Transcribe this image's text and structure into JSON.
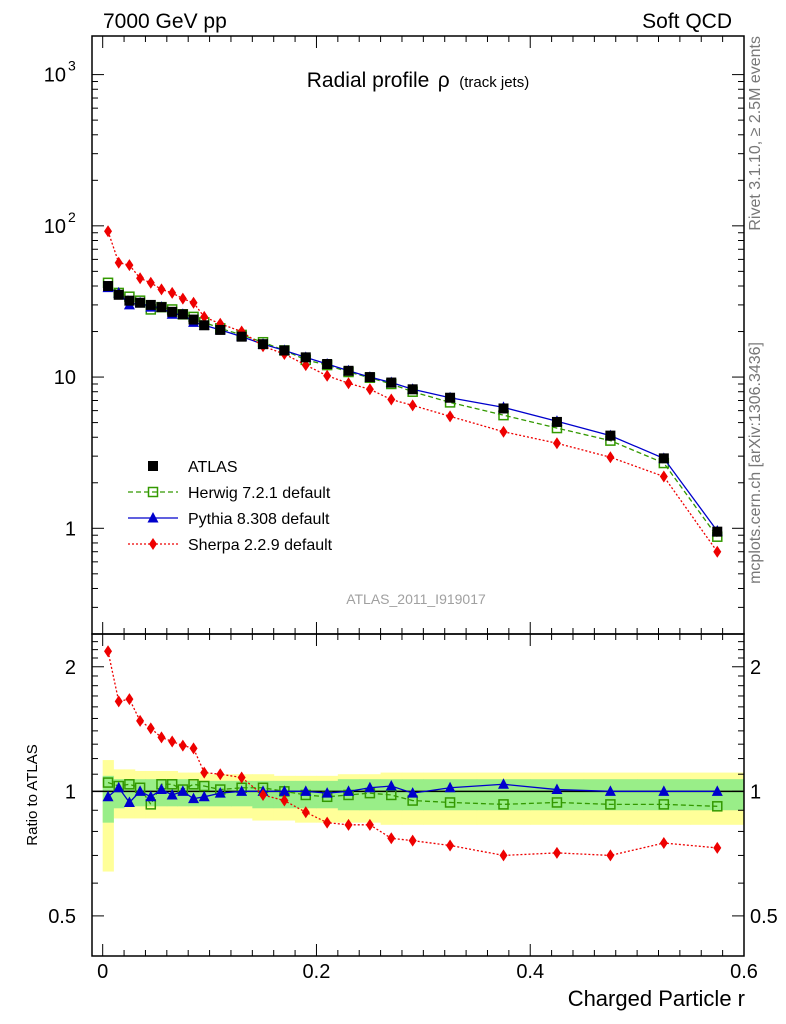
{
  "header": {
    "left": "7000 GeV pp",
    "right": "Soft QCD"
  },
  "side": {
    "top": "Rivet 3.1.10, ≥ 2.5M events",
    "bottom": "mcplots.cern.ch [arXiv:1306.3436]"
  },
  "chart_data": {
    "type": "line",
    "title": {
      "main": "Radial profile",
      "symbol": "ρ",
      "suffix": "(track jets)"
    },
    "watermark": "ATLAS_2011_I919017",
    "xlabel": "Charged Particle r",
    "ratio_ylabel": "Ratio to ATLAS",
    "xlim": [
      -0.01,
      0.6
    ],
    "ylim_main": [
      0.2,
      1800
    ],
    "yscale_main": "log",
    "ylim_ratio": [
      0.4,
      2.4
    ],
    "yscale_ratio": "log",
    "x_ticks": [
      "0",
      "0.2",
      "0.4",
      "0.6"
    ],
    "y_ticks_main": [
      {
        "value": 1,
        "label": "1"
      },
      {
        "value": 10,
        "label": "10"
      },
      {
        "value": 100,
        "label": "10",
        "exp": "2"
      },
      {
        "value": 1000,
        "label": "10",
        "exp": "3"
      }
    ],
    "y_ticks_ratio": [
      {
        "value": 0.5,
        "label": "0.5"
      },
      {
        "value": 1,
        "label": "1"
      },
      {
        "value": 2,
        "label": "2"
      }
    ],
    "x": [
      0.005,
      0.015,
      0.025,
      0.035,
      0.045,
      0.055,
      0.065,
      0.075,
      0.085,
      0.095,
      0.11,
      0.13,
      0.15,
      0.17,
      0.19,
      0.21,
      0.23,
      0.25,
      0.27,
      0.29,
      0.325,
      0.375,
      0.425,
      0.475,
      0.525,
      0.575
    ],
    "band_edges": [
      0.0,
      0.01,
      0.02,
      0.03,
      0.04,
      0.05,
      0.06,
      0.07,
      0.08,
      0.09,
      0.1,
      0.12,
      0.14,
      0.16,
      0.18,
      0.2,
      0.22,
      0.24,
      0.26,
      0.28,
      0.3,
      0.35,
      0.4,
      0.45,
      0.5,
      0.55,
      0.6
    ],
    "band_stat_lo": [
      0.84,
      0.91,
      0.92,
      0.92,
      0.92,
      0.92,
      0.92,
      0.92,
      0.92,
      0.92,
      0.92,
      0.92,
      0.91,
      0.91,
      0.91,
      0.91,
      0.9,
      0.9,
      0.9,
      0.9,
      0.9,
      0.9,
      0.9,
      0.9,
      0.9,
      0.9
    ],
    "band_stat_hi": [
      1.09,
      1.07,
      1.07,
      1.07,
      1.07,
      1.07,
      1.07,
      1.07,
      1.06,
      1.06,
      1.06,
      1.06,
      1.06,
      1.06,
      1.06,
      1.06,
      1.07,
      1.07,
      1.07,
      1.07,
      1.07,
      1.07,
      1.07,
      1.07,
      1.07,
      1.07
    ],
    "band_tot_lo": [
      0.64,
      0.86,
      0.86,
      0.86,
      0.86,
      0.86,
      0.86,
      0.86,
      0.86,
      0.86,
      0.86,
      0.86,
      0.85,
      0.85,
      0.84,
      0.84,
      0.84,
      0.84,
      0.83,
      0.83,
      0.83,
      0.83,
      0.83,
      0.83,
      0.83,
      0.83
    ],
    "band_tot_hi": [
      1.19,
      1.13,
      1.13,
      1.12,
      1.12,
      1.12,
      1.12,
      1.11,
      1.11,
      1.11,
      1.1,
      1.1,
      1.1,
      1.09,
      1.09,
      1.09,
      1.1,
      1.1,
      1.11,
      1.11,
      1.11,
      1.11,
      1.11,
      1.11,
      1.11,
      1.11
    ],
    "series": [
      {
        "name": "ATLAS",
        "color": "#000000",
        "marker": "square",
        "line": "none",
        "values": [
          40,
          35,
          32,
          31,
          30,
          29,
          27,
          26,
          24,
          22,
          20.5,
          18.5,
          16.5,
          15,
          13.5,
          12.2,
          11,
          10,
          9.2,
          8.3,
          7.3,
          6.2,
          5.05,
          4.1,
          2.9,
          0.95
        ],
        "ratio": [
          1,
          1,
          1,
          1,
          1,
          1,
          1,
          1,
          1,
          1,
          1,
          1,
          1,
          1,
          1,
          1,
          1,
          1,
          1,
          1,
          1,
          1,
          1,
          1,
          1,
          1
        ]
      },
      {
        "name": "Herwig 7.2.1 default",
        "color": "#339900",
        "marker": "open-square",
        "line": "dashed",
        "values": [
          42,
          36,
          34,
          32,
          28,
          29,
          28,
          26,
          25,
          23,
          21,
          19,
          17,
          15,
          13,
          12,
          10.8,
          9.9,
          9.0,
          8.0,
          6.8,
          5.6,
          4.6,
          3.8,
          2.7,
          0.88
        ],
        "ratio": [
          1.05,
          1.03,
          1.04,
          1.02,
          0.93,
          1.04,
          1.04,
          1.01,
          1.04,
          1.03,
          1.01,
          1.02,
          1.02,
          1.0,
          0.98,
          0.97,
          0.98,
          0.99,
          0.98,
          0.95,
          0.94,
          0.93,
          0.94,
          0.93,
          0.93,
          0.92
        ]
      },
      {
        "name": "Pythia 8.308 default",
        "color": "#0000cc",
        "marker": "triangle",
        "line": "solid",
        "values": [
          39,
          36,
          30,
          31,
          29,
          29,
          26,
          26,
          23,
          22,
          20.5,
          18.5,
          16.5,
          15,
          13.5,
          12.2,
          11,
          10,
          9.2,
          8.3,
          7.3,
          6.3,
          5.1,
          4.1,
          2.9,
          0.96
        ],
        "ratio": [
          0.97,
          1.02,
          0.94,
          1.0,
          0.97,
          1.01,
          0.98,
          1.0,
          0.96,
          0.97,
          0.99,
          1.0,
          1.0,
          1.0,
          1.0,
          0.99,
          1.0,
          1.02,
          1.03,
          0.99,
          1.02,
          1.04,
          1.01,
          1.0,
          1.0,
          1.0
        ]
      },
      {
        "name": "Sherpa 2.2.9 default",
        "color": "#ee0000",
        "marker": "diamond",
        "line": "dotted",
        "values": [
          92,
          57,
          55,
          45,
          42,
          38,
          36,
          33,
          31,
          25,
          22.5,
          20,
          16,
          14.2,
          12,
          10.2,
          9.1,
          8.3,
          7.1,
          6.5,
          5.5,
          4.35,
          3.65,
          2.95,
          2.2,
          0.7
        ],
        "ratio": [
          2.18,
          1.65,
          1.67,
          1.48,
          1.42,
          1.35,
          1.32,
          1.29,
          1.27,
          1.11,
          1.1,
          1.08,
          0.98,
          0.95,
          0.89,
          0.84,
          0.83,
          0.83,
          0.77,
          0.76,
          0.74,
          0.7,
          0.71,
          0.7,
          0.75,
          0.73
        ]
      }
    ]
  }
}
